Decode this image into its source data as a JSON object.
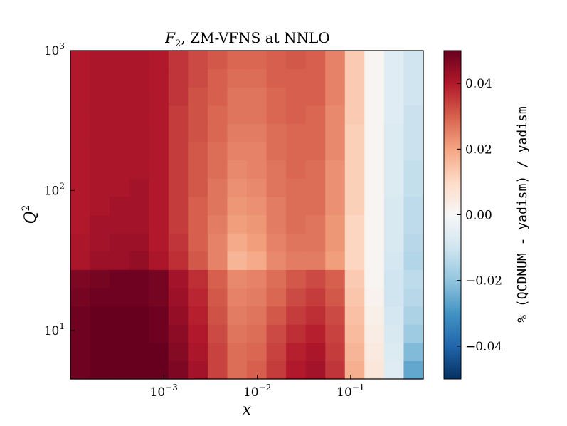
{
  "chart_data": {
    "type": "heatmap",
    "title_main": "F",
    "title_sub": "2",
    "title_rest": ", ZM-VFNS at NNLO",
    "xlabel": "x",
    "ylabel_main": "Q",
    "ylabel_sup": "2",
    "x_scale": "log",
    "y_scale": "log",
    "xlim": [
      0.0001,
      0.6
    ],
    "ylim": [
      4.5,
      1000
    ],
    "x_ticks": [
      {
        "value": 0.001,
        "base": "10",
        "exp": "−3"
      },
      {
        "value": 0.01,
        "base": "10",
        "exp": "−2"
      },
      {
        "value": 0.1,
        "base": "10",
        "exp": "−1"
      }
    ],
    "y_ticks": [
      {
        "value": 10,
        "base": "10",
        "exp": "1"
      },
      {
        "value": 100,
        "base": "10",
        "exp": "2"
      },
      {
        "value": 1000,
        "base": "10",
        "exp": "3"
      }
    ],
    "colorbar": {
      "label": "% (QCDNUM - yadism) / yadism",
      "vmin": -0.05,
      "vmax": 0.05,
      "ticks": [
        "0.04",
        "0.02",
        "0.00",
        "−0.02",
        "−0.04"
      ],
      "tick_values": [
        0.04,
        0.02,
        0.0,
        -0.02,
        -0.04
      ],
      "colormap": "RdBu_r",
      "colors": [
        "#053061",
        "#2166ac",
        "#4393c3",
        "#92c5de",
        "#d1e5f0",
        "#f7f7f7",
        "#fddbc7",
        "#f4a582",
        "#d6604d",
        "#b2182b",
        "#67001f"
      ]
    },
    "grid": false,
    "n_columns": 18,
    "n_rows": 18,
    "rows_low_q2": [
      [
        0.049,
        0.05,
        0.05,
        0.05,
        0.05,
        0.047,
        0.042,
        0.034,
        0.028,
        0.03,
        0.035,
        0.04,
        0.042,
        0.036,
        0.018,
        0.006,
        -0.006,
        -0.026
      ],
      [
        0.049,
        0.05,
        0.05,
        0.05,
        0.05,
        0.046,
        0.041,
        0.034,
        0.028,
        0.029,
        0.034,
        0.039,
        0.041,
        0.035,
        0.017,
        0.005,
        -0.007,
        -0.022
      ],
      [
        0.049,
        0.05,
        0.05,
        0.05,
        0.049,
        0.045,
        0.04,
        0.033,
        0.027,
        0.028,
        0.033,
        0.037,
        0.039,
        0.034,
        0.016,
        0.004,
        -0.008,
        -0.018
      ],
      [
        0.049,
        0.05,
        0.05,
        0.05,
        0.049,
        0.044,
        0.039,
        0.032,
        0.026,
        0.027,
        0.031,
        0.035,
        0.037,
        0.033,
        0.015,
        0.003,
        -0.009,
        -0.016
      ],
      [
        0.048,
        0.049,
        0.049,
        0.049,
        0.048,
        0.043,
        0.038,
        0.031,
        0.025,
        0.026,
        0.029,
        0.033,
        0.035,
        0.031,
        0.014,
        0.002,
        -0.01,
        -0.014
      ],
      [
        0.047,
        0.048,
        0.049,
        0.049,
        0.048,
        0.042,
        0.037,
        0.03,
        0.024,
        0.025,
        0.028,
        0.031,
        0.033,
        0.03,
        0.013,
        0.001,
        -0.01,
        -0.013
      ],
      [
        0.041,
        0.043,
        0.043,
        0.044,
        0.041,
        0.037,
        0.031,
        0.025,
        0.017,
        0.019,
        0.024,
        0.026,
        0.026,
        0.021,
        0.011,
        0.001,
        -0.009,
        -0.015
      ],
      [
        0.041,
        0.042,
        0.043,
        0.043,
        0.04,
        0.036,
        0.03,
        0.025,
        0.019,
        0.021,
        0.025,
        0.027,
        0.027,
        0.022,
        0.011,
        0.001,
        -0.008,
        -0.014
      ],
      [
        0.04,
        0.042,
        0.042,
        0.042,
        0.04,
        0.035,
        0.03,
        0.026,
        0.021,
        0.022,
        0.026,
        0.028,
        0.027,
        0.022,
        0.011,
        0.001,
        -0.008,
        -0.013
      ]
    ],
    "rows_high_q2": [
      [
        0.04,
        0.041,
        0.042,
        0.042,
        0.04,
        0.035,
        0.03,
        0.027,
        0.022,
        0.023,
        0.026,
        0.028,
        0.028,
        0.023,
        0.012,
        0.001,
        -0.008,
        -0.013
      ],
      [
        0.04,
        0.041,
        0.041,
        0.042,
        0.04,
        0.035,
        0.031,
        0.027,
        0.023,
        0.024,
        0.027,
        0.028,
        0.028,
        0.023,
        0.012,
        0.001,
        -0.007,
        -0.012
      ],
      [
        0.04,
        0.041,
        0.041,
        0.041,
        0.04,
        0.035,
        0.031,
        0.028,
        0.024,
        0.025,
        0.027,
        0.029,
        0.028,
        0.023,
        0.012,
        0.001,
        -0.007,
        -0.012
      ],
      [
        0.04,
        0.041,
        0.041,
        0.041,
        0.04,
        0.035,
        0.031,
        0.028,
        0.025,
        0.025,
        0.028,
        0.029,
        0.029,
        0.024,
        0.012,
        0.001,
        -0.007,
        -0.011
      ],
      [
        0.04,
        0.041,
        0.041,
        0.041,
        0.04,
        0.035,
        0.032,
        0.029,
        0.026,
        0.026,
        0.028,
        0.029,
        0.029,
        0.024,
        0.012,
        0.001,
        -0.007,
        -0.011
      ],
      [
        0.04,
        0.041,
        0.041,
        0.041,
        0.04,
        0.035,
        0.032,
        0.029,
        0.027,
        0.027,
        0.029,
        0.03,
        0.029,
        0.024,
        0.013,
        0.001,
        -0.006,
        -0.011
      ],
      [
        0.04,
        0.041,
        0.041,
        0.041,
        0.04,
        0.036,
        0.032,
        0.03,
        0.027,
        0.027,
        0.029,
        0.03,
        0.03,
        0.025,
        0.013,
        0.001,
        -0.006,
        -0.01
      ],
      [
        0.04,
        0.041,
        0.041,
        0.041,
        0.04,
        0.036,
        0.033,
        0.03,
        0.028,
        0.028,
        0.03,
        0.03,
        0.03,
        0.025,
        0.013,
        0.001,
        -0.006,
        -0.01
      ],
      [
        0.04,
        0.041,
        0.041,
        0.041,
        0.04,
        0.036,
        0.033,
        0.031,
        0.029,
        0.029,
        0.03,
        0.031,
        0.03,
        0.025,
        0.013,
        0.001,
        -0.006,
        -0.01
      ]
    ]
  }
}
